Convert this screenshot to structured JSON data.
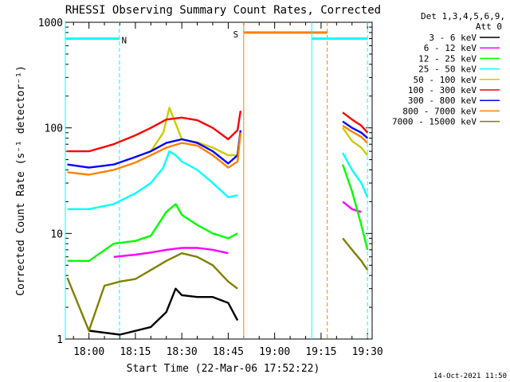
{
  "chart_data": {
    "type": "line",
    "title": "RHESSI Observing Summary Count Rates, Corrected",
    "xlabel": "Start Time (22-Mar-06 17:52:22)",
    "ylabel": "Corrected Count Rate (s⁻¹ detector⁻¹)",
    "yscale": "log",
    "ylim": [
      1,
      1000
    ],
    "xlim": [
      "17:52:22",
      "19:31:30"
    ],
    "x_ticks": [
      "18:00",
      "18:15",
      "18:30",
      "18:45",
      "19:00",
      "19:15",
      "19:30"
    ],
    "y_ticks": [
      "1",
      "10",
      "100",
      "1000"
    ],
    "legend_title": [
      "Det 1,3,4,5,6,9,",
      "Att 0"
    ],
    "legend_position": "right",
    "timestamp": "14-Oct-2021 11:50",
    "series": [
      {
        "name": "3 - 6 keV",
        "color": "#000000",
        "x": [
          "18:00",
          "18:10",
          "18:20",
          "18:25",
          "18:28",
          "18:30",
          "18:35",
          "18:40",
          "18:45",
          "18:48",
          "19:25"
        ],
        "y": [
          1.2,
          1.1,
          1.3,
          1.8,
          3.0,
          2.6,
          2.5,
          2.5,
          2.2,
          1.5,
          null
        ]
      },
      {
        "name": "6 - 12 keV",
        "color": "#ff00ff",
        "x": [
          "18:08",
          "18:15",
          "18:20",
          "18:25",
          "18:30",
          "18:35",
          "18:40",
          "18:45",
          "19:22",
          "19:25",
          "19:28"
        ],
        "y": [
          6.0,
          6.3,
          6.6,
          7.0,
          7.3,
          7.3,
          7.0,
          6.5,
          20,
          17,
          16
        ]
      },
      {
        "name": "12 - 25 keV",
        "color": "#00ff00",
        "x": [
          "17:53",
          "18:00",
          "18:08",
          "18:15",
          "18:20",
          "18:25",
          "18:28",
          "18:30",
          "18:35",
          "18:40",
          "18:45",
          "18:48",
          "19:22",
          "19:25",
          "19:28",
          "19:30"
        ],
        "y": [
          5.5,
          5.5,
          8.0,
          8.5,
          9.5,
          16,
          19,
          15,
          12,
          10,
          9,
          10,
          45,
          25,
          12,
          7
        ]
      },
      {
        "name": "25 - 50 keV",
        "color": "#00ffff",
        "x": [
          "17:53",
          "18:00",
          "18:08",
          "18:15",
          "18:20",
          "18:24",
          "18:26",
          "18:28",
          "18:30",
          "18:35",
          "18:40",
          "18:45",
          "18:48",
          "19:22",
          "19:25",
          "19:28",
          "19:30"
        ],
        "y": [
          17,
          17,
          19,
          24,
          30,
          42,
          60,
          55,
          48,
          40,
          30,
          22,
          23,
          58,
          40,
          30,
          22
        ]
      },
      {
        "name": "50 - 100 keV",
        "color": "#cccc00",
        "x": [
          "18:20",
          "18:24",
          "18:26",
          "18:28",
          "18:30",
          "18:35",
          "18:40",
          "18:45",
          "18:48",
          "19:22",
          "19:25",
          "19:28",
          "19:30"
        ],
        "y": [
          60,
          90,
          155,
          110,
          78,
          73,
          65,
          55,
          55,
          100,
          75,
          65,
          55
        ]
      },
      {
        "name": "100 - 300 keV",
        "color": "#ff0000",
        "x": [
          "17:53",
          "18:00",
          "18:08",
          "18:15",
          "18:20",
          "18:25",
          "18:30",
          "18:35",
          "18:40",
          "18:45",
          "18:48",
          "18:49",
          "19:22",
          "19:25",
          "19:28",
          "19:30"
        ],
        "y": [
          60,
          60,
          70,
          85,
          100,
          120,
          125,
          118,
          100,
          78,
          95,
          145,
          140,
          120,
          105,
          90
        ]
      },
      {
        "name": "300 - 800 keV",
        "color": "#0000ff",
        "x": [
          "17:53",
          "18:00",
          "18:08",
          "18:15",
          "18:20",
          "18:25",
          "18:30",
          "18:35",
          "18:40",
          "18:45",
          "18:48",
          "18:49",
          "19:22",
          "19:25",
          "19:28",
          "19:30"
        ],
        "y": [
          45,
          42,
          45,
          53,
          60,
          72,
          78,
          72,
          60,
          46,
          55,
          95,
          115,
          100,
          90,
          80
        ]
      },
      {
        "name": "800 - 7000 keV",
        "color": "#ff8000",
        "x": [
          "17:53",
          "18:00",
          "18:08",
          "18:15",
          "18:20",
          "18:25",
          "18:30",
          "18:35",
          "18:40",
          "18:45",
          "18:48",
          "18:49",
          "19:22",
          "19:25",
          "19:28",
          "19:30"
        ],
        "y": [
          38,
          36,
          40,
          47,
          55,
          65,
          72,
          68,
          55,
          42,
          48,
          90,
          105,
          92,
          82,
          72
        ]
      },
      {
        "name": "7000 - 15000 keV",
        "color": "#808000",
        "x": [
          "17:53",
          "18:00",
          "18:05",
          "18:10",
          "18:15",
          "18:20",
          "18:25",
          "18:30",
          "18:35",
          "18:40",
          "18:45",
          "18:48",
          "19:22",
          "19:25",
          "19:28",
          "19:30"
        ],
        "y": [
          3.8,
          1.2,
          3.2,
          3.5,
          3.7,
          4.5,
          5.5,
          6.5,
          6.0,
          5.0,
          3.5,
          3.0,
          9.0,
          7.0,
          5.5,
          4.5
        ]
      }
    ],
    "annotations": [
      {
        "label": "N",
        "color": "#00ffff",
        "x_start": "17:52:22",
        "x_end": "18:09:50",
        "level": 700
      },
      {
        "label": "S",
        "color": "#ff8000",
        "x_start": "18:50:00",
        "x_end": "19:17:00",
        "level": 800
      },
      {
        "label": "",
        "color": "#00ffff",
        "x_start": "19:12:00",
        "x_end": "19:30:00",
        "level": 700
      }
    ]
  }
}
